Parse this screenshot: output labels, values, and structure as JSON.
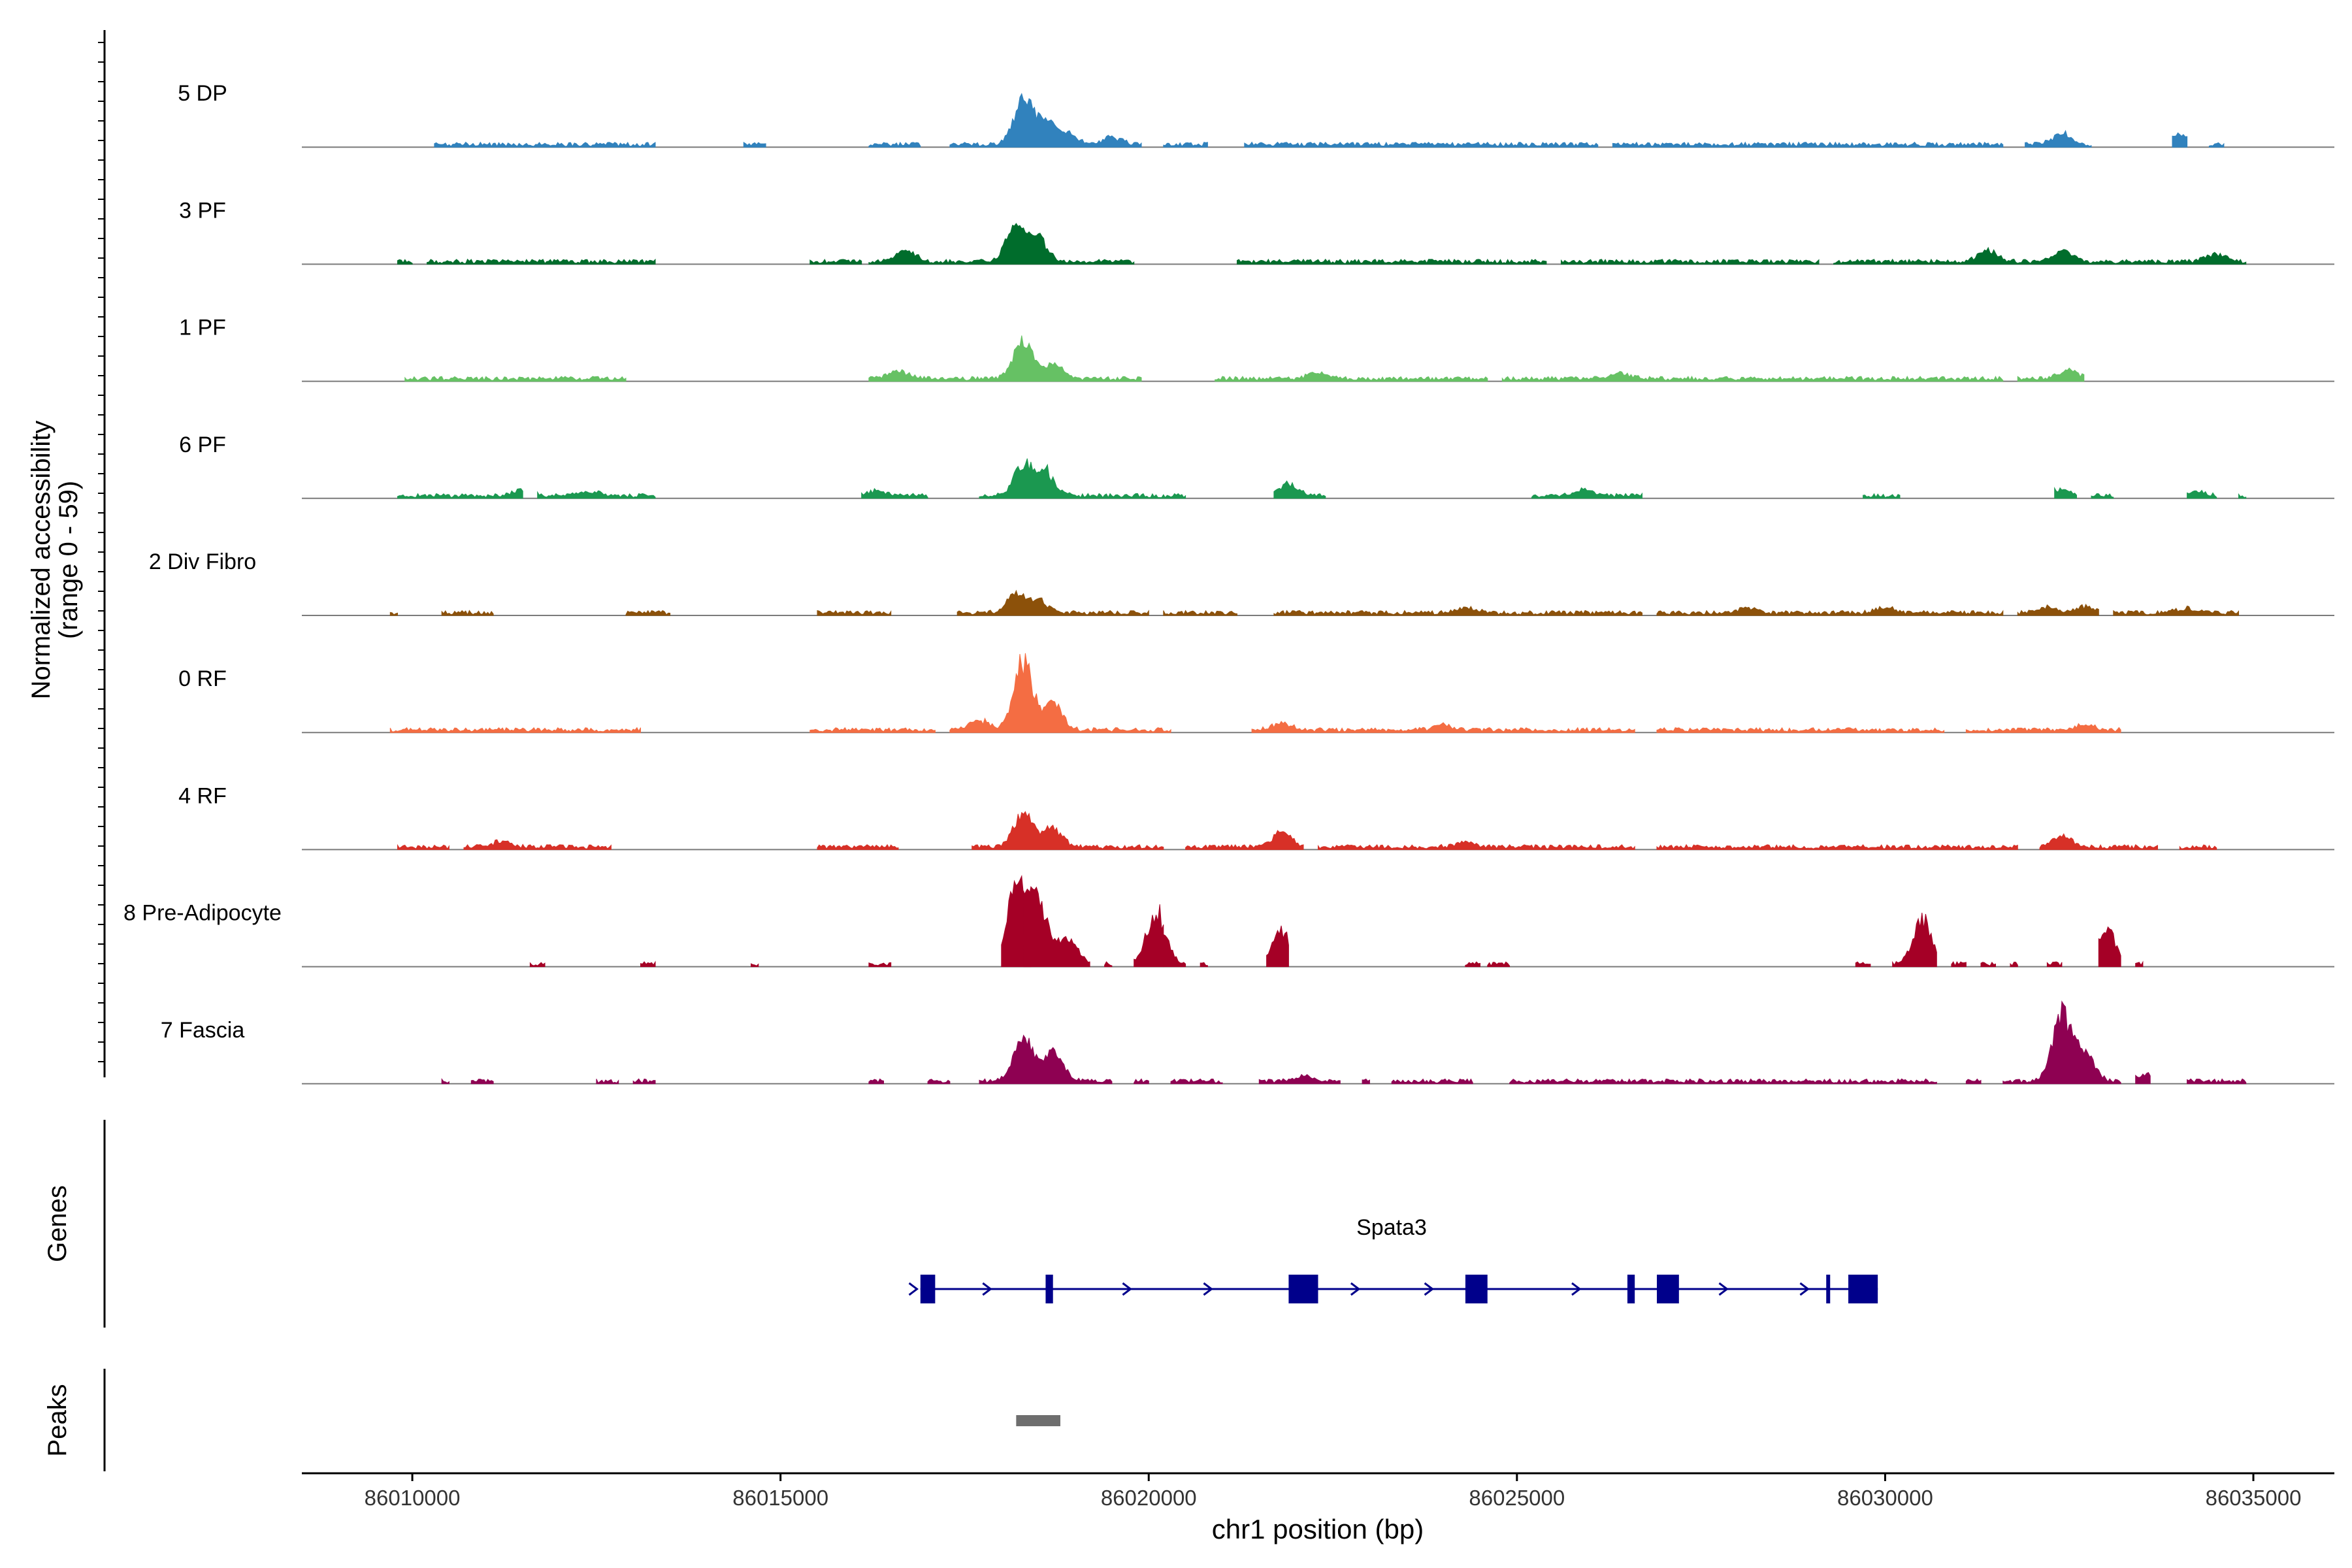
{
  "chart_data": {
    "type": "area",
    "title": "",
    "ylabel_line1": "Normalized accessibility",
    "ylabel_line2": "(range 0 - 59)",
    "ylim": [
      0,
      59
    ],
    "xlabel": "chr1 position (bp)",
    "xlim": [
      86008500,
      86036100
    ],
    "x_ticks": [
      86010000,
      86015000,
      86020000,
      86025000,
      86030000,
      86035000
    ],
    "x_tick_labels": [
      "86010000",
      "86015000",
      "86020000",
      "86025000",
      "86030000",
      "86035000"
    ],
    "genes_label": "Genes",
    "peaks_label": "Peaks",
    "series": [
      {
        "name": "5 DP",
        "color": "#3182BD",
        "regions": [
          [
            86010300,
            86013300
          ],
          [
            86014500,
            86014800
          ],
          [
            86016200,
            86016900
          ],
          [
            86017300,
            86019900
          ],
          [
            86020200,
            86020800
          ],
          [
            86021300,
            86026100
          ],
          [
            86026300,
            86031600
          ],
          [
            86031900,
            86032800
          ],
          [
            86033900,
            86034100
          ],
          [
            86034400,
            86034600
          ]
        ],
        "peaks": [
          [
            86018300,
            28
          ],
          [
            86018600,
            16
          ],
          [
            86018900,
            6
          ],
          [
            86019500,
            5
          ],
          [
            86032400,
            7
          ],
          [
            86034000,
            6
          ]
        ]
      },
      {
        "name": "3 PF",
        "color": "#006D2C",
        "regions": [
          [
            86009800,
            86010000
          ],
          [
            86010200,
            86013300
          ],
          [
            86015400,
            86016100
          ],
          [
            86016200,
            86019800
          ],
          [
            86021200,
            86025400
          ],
          [
            86025600,
            86029100
          ],
          [
            86029300,
            86034900
          ]
        ],
        "peaks": [
          [
            86018200,
            24
          ],
          [
            86018500,
            14
          ],
          [
            86016700,
            8
          ],
          [
            86031400,
            7
          ],
          [
            86032400,
            7
          ],
          [
            86034500,
            5
          ]
        ]
      },
      {
        "name": "1 PF",
        "color": "#66C164",
        "regions": [
          [
            86009900,
            86012900
          ],
          [
            86016200,
            86019900
          ],
          [
            86020900,
            86024600
          ],
          [
            86024800,
            86031600
          ],
          [
            86031800,
            86032700
          ]
        ],
        "peaks": [
          [
            86018300,
            24
          ],
          [
            86018700,
            9
          ],
          [
            86016600,
            5
          ],
          [
            86022300,
            4
          ],
          [
            86026400,
            4
          ],
          [
            86032500,
            5
          ]
        ]
      },
      {
        "name": "6 PF",
        "color": "#1B9850",
        "regions": [
          [
            86009800,
            86011500
          ],
          [
            86011700,
            86013300
          ],
          [
            86016100,
            86017000
          ],
          [
            86017700,
            86020500
          ],
          [
            86021700,
            86022400
          ],
          [
            86025200,
            86026700
          ],
          [
            86029700,
            86030200
          ],
          [
            86032300,
            86032600
          ],
          [
            86032800,
            86033100
          ],
          [
            86034100,
            86034500
          ],
          [
            86034800,
            86034900
          ]
        ],
        "peaks": [
          [
            86018300,
            19
          ],
          [
            86018600,
            15
          ],
          [
            86021900,
            7
          ],
          [
            86011500,
            4
          ],
          [
            86012400,
            3
          ],
          [
            86016300,
            3
          ],
          [
            86025900,
            4
          ],
          [
            86032400,
            4
          ],
          [
            86034200,
            3
          ]
        ]
      },
      {
        "name": "2 Div Fibro",
        "color": "#8C510A",
        "regions": [
          [
            86009700,
            86009800
          ],
          [
            86010400,
            86011100
          ],
          [
            86012900,
            86013500
          ],
          [
            86015500,
            86016500
          ],
          [
            86017400,
            86020000
          ],
          [
            86020200,
            86021200
          ],
          [
            86021700,
            86026700
          ],
          [
            86026900,
            86031600
          ],
          [
            86031800,
            86032900
          ],
          [
            86033100,
            86034800
          ]
        ],
        "peaks": [
          [
            86018200,
            12
          ],
          [
            86018500,
            8
          ],
          [
            86024300,
            4
          ],
          [
            86028100,
            3
          ],
          [
            86030000,
            3
          ],
          [
            86032200,
            4
          ],
          [
            86032700,
            4
          ],
          [
            86034100,
            3
          ]
        ]
      },
      {
        "name": "0 RF",
        "color": "#F46D43",
        "regions": [
          [
            86009700,
            86013100
          ],
          [
            86015400,
            86017100
          ],
          [
            86017300,
            86020300
          ],
          [
            86021400,
            86026600
          ],
          [
            86026900,
            86030800
          ],
          [
            86031100,
            86033200
          ]
        ],
        "peaks": [
          [
            86018300,
            42
          ],
          [
            86018700,
            17
          ],
          [
            86017700,
            6
          ],
          [
            86021800,
            4
          ],
          [
            86024000,
            3
          ],
          [
            86032700,
            3
          ]
        ]
      },
      {
        "name": "4 RF",
        "color": "#D73027",
        "regions": [
          [
            86009800,
            86010500
          ],
          [
            86010700,
            86012700
          ],
          [
            86015500,
            86016600
          ],
          [
            86017600,
            86020200
          ],
          [
            86020500,
            86022100
          ],
          [
            86022300,
            86026600
          ],
          [
            86026900,
            86031800
          ],
          [
            86032100,
            86033700
          ],
          [
            86034000,
            86034500
          ]
        ],
        "peaks": [
          [
            86018300,
            22
          ],
          [
            86018700,
            12
          ],
          [
            86021800,
            9
          ],
          [
            86032400,
            7
          ],
          [
            86011200,
            3
          ],
          [
            86024300,
            3
          ]
        ]
      },
      {
        "name": "8 Pre-Adipocyte",
        "color": "#A50026",
        "regions": [
          [
            86011600,
            86011800
          ],
          [
            86013100,
            86013300
          ],
          [
            86014600,
            86014700
          ],
          [
            86016200,
            86016500
          ],
          [
            86018000,
            86018400
          ],
          [
            86018300,
            86019200
          ],
          [
            86019400,
            86019500
          ],
          [
            86019800,
            86020200
          ],
          [
            86020200,
            86020500
          ],
          [
            86020700,
            86020800
          ],
          [
            86021600,
            86021900
          ],
          [
            86024300,
            86024500
          ],
          [
            86024600,
            86024900
          ],
          [
            86029600,
            86029800
          ],
          [
            86030100,
            86030700
          ],
          [
            86030900,
            86031100
          ],
          [
            86031300,
            86031500
          ],
          [
            86031700,
            86031800
          ],
          [
            86032200,
            86032400
          ],
          [
            86032900,
            86033200
          ],
          [
            86033400,
            86033500
          ]
        ],
        "peaks": [
          [
            86018200,
            48
          ],
          [
            86018500,
            40
          ],
          [
            86018900,
            16
          ],
          [
            86020100,
            34
          ],
          [
            86030500,
            28
          ],
          [
            86033000,
            22
          ],
          [
            86021800,
            20
          ]
        ]
      },
      {
        "name": "7 Fascia",
        "color": "#8E0152",
        "regions": [
          [
            86010400,
            86010500
          ],
          [
            86010800,
            86011100
          ],
          [
            86012500,
            86012800
          ],
          [
            86013000,
            86013300
          ],
          [
            86016200,
            86016400
          ],
          [
            86017000,
            86017300
          ],
          [
            86017700,
            86019500
          ],
          [
            86019800,
            86020000
          ],
          [
            86020300,
            86021000
          ],
          [
            86021500,
            86022600
          ],
          [
            86022900,
            86023000
          ],
          [
            86023300,
            86024400
          ],
          [
            86024900,
            86030700
          ],
          [
            86031100,
            86031300
          ],
          [
            86031600,
            86033200
          ],
          [
            86033400,
            86033600
          ],
          [
            86034100,
            86034900
          ]
        ],
        "peaks": [
          [
            86018300,
            29
          ],
          [
            86018700,
            20
          ],
          [
            86032400,
            42
          ],
          [
            86032700,
            18
          ],
          [
            86022100,
            3
          ],
          [
            86033500,
            4
          ]
        ]
      }
    ],
    "gene": {
      "name": "Spata3",
      "color": "#00008B",
      "start": 86016900,
      "end": 86029900,
      "exons": [
        [
          86016900,
          86017100
        ],
        [
          86018600,
          86018700
        ],
        [
          86021900,
          86022300
        ],
        [
          86024300,
          86024600
        ],
        [
          86026500,
          86026600
        ],
        [
          86026900,
          86027200
        ],
        [
          86029200,
          86029200
        ],
        [
          86029500,
          86029900
        ]
      ],
      "arrows": [
        86016800,
        86017800,
        86019700,
        86020800,
        86022800,
        86023800,
        86025800,
        86027800,
        86028900
      ]
    },
    "peak_region": [
      86018200,
      86018800
    ]
  }
}
